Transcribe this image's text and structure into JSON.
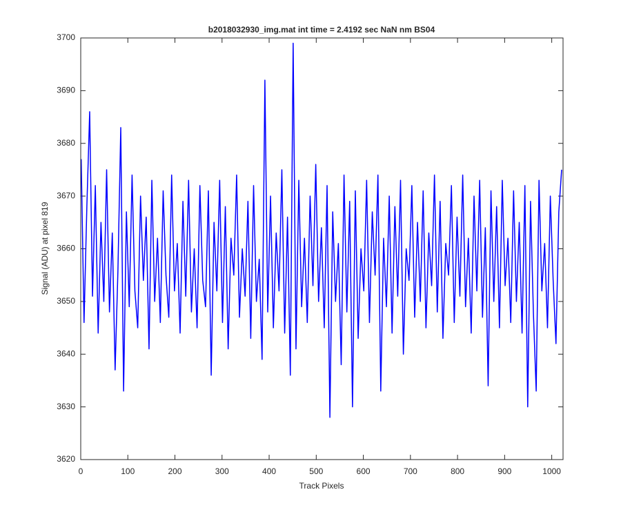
{
  "chart_data": {
    "type": "line",
    "title": "b2018032930_img.mat int time = 2.4192 sec  NaN nm BS04",
    "xlabel": "Track Pixels",
    "ylabel": "Signal (ADU) at pixel 819",
    "color": "#0000ff",
    "xlim": [
      0,
      1024
    ],
    "ylim": [
      3620,
      3700
    ],
    "xticks": [
      0,
      100,
      200,
      300,
      400,
      500,
      600,
      700,
      800,
      900,
      1000
    ],
    "yticks": [
      3620,
      3630,
      3640,
      3650,
      3660,
      3670,
      3680,
      3690,
      3700
    ],
    "grid": false,
    "x": [
      1,
      7,
      13,
      19,
      25,
      31,
      37,
      43,
      49,
      55,
      61,
      67,
      73,
      79,
      85,
      91,
      97,
      103,
      109,
      115,
      121,
      127,
      133,
      139,
      145,
      151,
      157,
      163,
      169,
      175,
      181,
      187,
      193,
      199,
      205,
      211,
      217,
      223,
      229,
      235,
      241,
      247,
      253,
      259,
      265,
      271,
      277,
      283,
      289,
      295,
      301,
      307,
      313,
      319,
      325,
      331,
      337,
      343,
      349,
      355,
      361,
      367,
      373,
      379,
      385,
      391,
      397,
      403,
      409,
      415,
      421,
      427,
      433,
      439,
      445,
      451,
      457,
      463,
      469,
      475,
      481,
      487,
      493,
      499,
      505,
      511,
      517,
      523,
      529,
      535,
      541,
      547,
      553,
      559,
      565,
      571,
      577,
      583,
      589,
      595,
      601,
      607,
      613,
      619,
      625,
      631,
      637,
      643,
      649,
      655,
      661,
      667,
      673,
      679,
      685,
      691,
      697,
      703,
      709,
      715,
      721,
      727,
      733,
      739,
      745,
      751,
      757,
      763,
      769,
      775,
      781,
      787,
      793,
      799,
      805,
      811,
      817,
      823,
      829,
      835,
      841,
      847,
      853,
      859,
      865,
      871,
      877,
      883,
      889,
      895,
      901,
      907,
      913,
      919,
      925,
      931,
      937,
      943,
      949,
      955,
      961,
      967,
      973,
      979,
      985,
      991,
      997,
      1003,
      1009,
      1015,
      1021
    ],
    "values": [
      3677,
      3646,
      3668,
      3686,
      3651,
      3672,
      3644,
      3665,
      3650,
      3675,
      3648,
      3663,
      3637,
      3656,
      3683,
      3633,
      3667,
      3649,
      3674,
      3652,
      3645,
      3670,
      3654,
      3666,
      3641,
      3673,
      3650,
      3662,
      3646,
      3671,
      3655,
      3647,
      3674,
      3652,
      3661,
      3644,
      3669,
      3651,
      3673,
      3648,
      3660,
      3645,
      3672,
      3654,
      3649,
      3671,
      3636,
      3665,
      3652,
      3673,
      3646,
      3668,
      3641,
      3662,
      3655,
      3674,
      3647,
      3660,
      3651,
      3669,
      3643,
      3672,
      3650,
      3658,
      3639,
      3692,
      3648,
      3670,
      3645,
      3663,
      3652,
      3675,
      3644,
      3666,
      3636,
      3699,
      3641,
      3673,
      3649,
      3662,
      3646,
      3670,
      3653,
      3676,
      3650,
      3664,
      3645,
      3672,
      3628,
      3667,
      3650,
      3661,
      3638,
      3674,
      3648,
      3669,
      3630,
      3671,
      3643,
      3660,
      3652,
      3673,
      3646,
      3667,
      3655,
      3674,
      3633,
      3662,
      3649,
      3670,
      3644,
      3668,
      3651,
      3673,
      3640,
      3660,
      3654,
      3672,
      3647,
      3665,
      3650,
      3671,
      3645,
      3663,
      3653,
      3674,
      3648,
      3669,
      3643,
      3661,
      3655,
      3672,
      3646,
      3666,
      3651,
      3674,
      3649,
      3662,
      3644,
      3670,
      3652,
      3673,
      3647,
      3664,
      3634,
      3671,
      3650,
      3668,
      3645,
      3673,
      3653,
      3662,
      3646,
      3671,
      3650,
      3665,
      3644,
      3672,
      3630,
      3669,
      3648,
      3633,
      3673,
      3652,
      3661,
      3645,
      3670,
      3654,
      3642,
      3667,
      3675
    ]
  }
}
